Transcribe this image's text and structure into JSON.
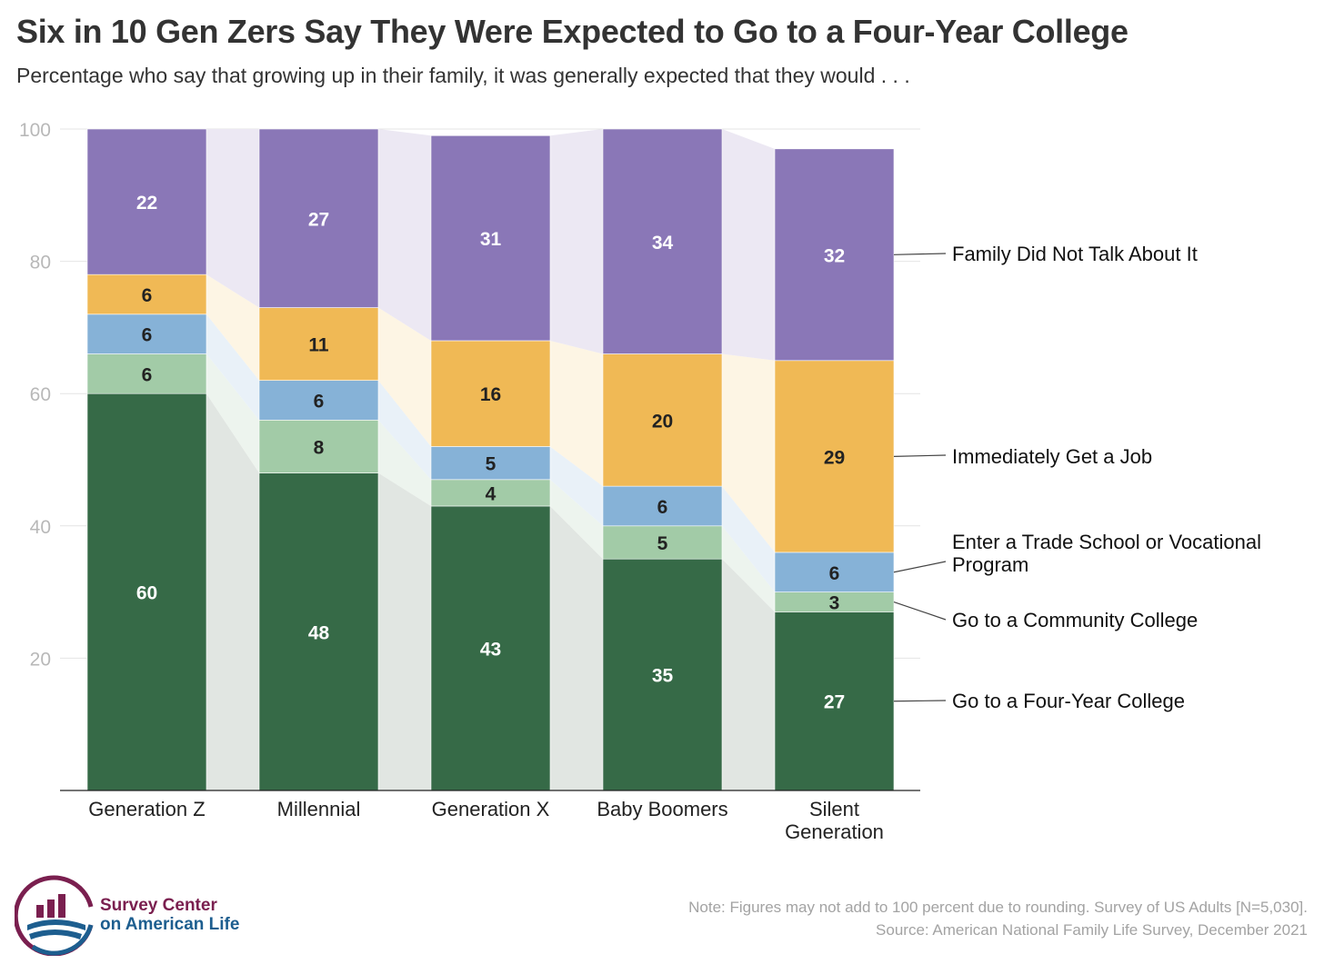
{
  "title": "Six in 10 Gen Zers Say They Were Expected to Go to a Four-Year College",
  "subtitle": "Percentage who say that growing up in their family, it was generally expected that they would . . .",
  "note": "Note: Figures may not add to 100 percent due to rounding. Survey of US Adults [N=5,030].",
  "source": "Source: American National Family Life Survey, December 2021",
  "logo": {
    "line1": "Survey Center",
    "line2": "on American Life"
  },
  "chart_data": {
    "type": "bar",
    "stacked": true,
    "categories": [
      [
        "Generation Z"
      ],
      [
        "Millennial"
      ],
      [
        "Generation X"
      ],
      [
        "Baby Boomers"
      ],
      [
        "Silent",
        "Generation"
      ]
    ],
    "series": [
      {
        "name": "Go to a Four-Year College",
        "values": [
          60,
          48,
          43,
          35,
          27
        ],
        "color": "#366a47",
        "band": "#e1e6e2",
        "label_color": "#ffffff"
      },
      {
        "name": "Go to a Community College",
        "values": [
          6,
          8,
          4,
          5,
          3
        ],
        "color": "#a2cba7",
        "band": "#edf4ee",
        "label_color": "#222222"
      },
      {
        "name": "Enter a Trade School or Vocational Program",
        "legend_lines": [
          "Enter a Trade School or Vocational",
          "Program"
        ],
        "values": [
          6,
          6,
          5,
          6,
          6
        ],
        "color": "#86b2d7",
        "band": "#e9f1f8",
        "label_color": "#222222"
      },
      {
        "name": "Immediately Get a Job",
        "values": [
          6,
          11,
          16,
          20,
          29
        ],
        "color": "#f0b955",
        "band": "#fdf5e4",
        "label_color": "#222222"
      },
      {
        "name": "Family Did Not Talk About It",
        "values": [
          22,
          27,
          31,
          34,
          32
        ],
        "color": "#8a77b7",
        "band": "#ece8f3",
        "label_color": "#ffffff"
      }
    ],
    "ylim": [
      0,
      100
    ],
    "yticks": [
      20,
      40,
      60,
      80,
      100
    ],
    "grid": true,
    "legend_placement": "right, labels aligned to segments",
    "xlabel": "",
    "ylabel": ""
  }
}
